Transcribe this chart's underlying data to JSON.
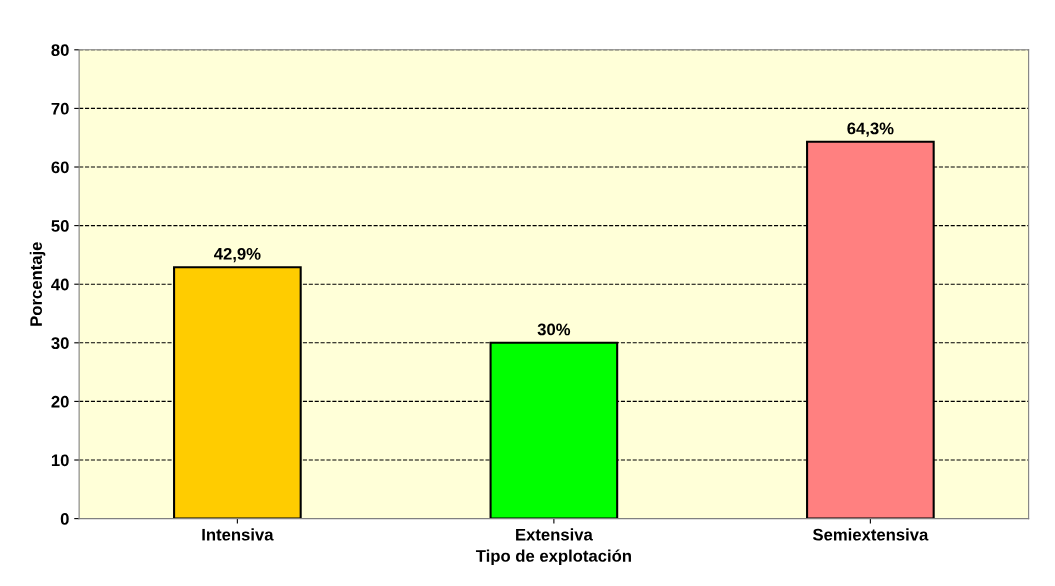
{
  "chart_data": {
    "type": "bar",
    "xlabel": "Tipo de explotación",
    "ylabel": "Porcentaje",
    "categories": [
      "Intensiva",
      "Extensiva",
      "Semiextensiva"
    ],
    "values": [
      42.9,
      30,
      64.3
    ],
    "colors": [
      "#ffcc00",
      "#00ff00",
      "#ff8080"
    ],
    "value_labels": [
      "42,9%",
      "30%",
      "64,3%"
    ],
    "ylim": [
      0,
      80
    ],
    "yticks": [
      0,
      10,
      20,
      30,
      40,
      50,
      60,
      70,
      80
    ],
    "grid": "y",
    "line_style": "dashed",
    "legend": false
  }
}
